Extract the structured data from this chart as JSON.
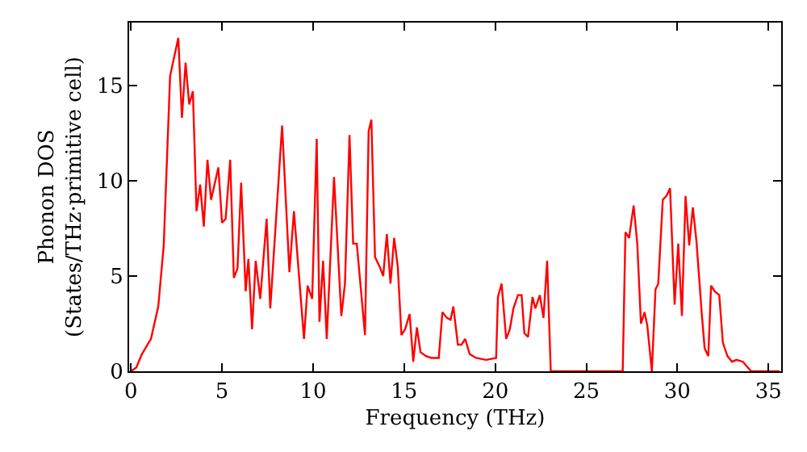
{
  "chart_data": {
    "type": "line",
    "xlabel": "Frequency (THz)",
    "ylabel": "Phonon DOS\n(States/THz·primitive cell)",
    "x": [
      0,
      0.3,
      0.6,
      1.1,
      1.5,
      1.8,
      2.15,
      2.6,
      2.8,
      3.0,
      3.2,
      3.4,
      3.6,
      3.8,
      4.0,
      4.2,
      4.4,
      4.8,
      5.0,
      5.2,
      5.45,
      5.65,
      5.85,
      6.05,
      6.3,
      6.45,
      6.65,
      6.85,
      7.1,
      7.45,
      7.65,
      8.3,
      8.7,
      8.95,
      9.5,
      9.7,
      9.95,
      10.2,
      10.35,
      10.55,
      10.75,
      11.15,
      11.55,
      11.75,
      12.0,
      12.2,
      12.4,
      12.85,
      13.05,
      13.2,
      13.4,
      13.65,
      13.85,
      14.05,
      14.25,
      14.45,
      14.65,
      14.85,
      15.05,
      15.3,
      15.5,
      15.7,
      15.9,
      16.2,
      16.5,
      16.9,
      17.1,
      17.35,
      17.55,
      17.7,
      17.95,
      18.15,
      18.35,
      18.6,
      18.95,
      19.5,
      20.05,
      20.15,
      20.35,
      20.6,
      20.8,
      21.0,
      21.25,
      21.45,
      21.6,
      21.8,
      22.05,
      22.2,
      22.45,
      22.65,
      22.85,
      23.05,
      27.0,
      27.15,
      27.35,
      27.6,
      27.8,
      28.0,
      28.2,
      28.35,
      28.6,
      28.8,
      28.95,
      29.2,
      29.4,
      29.6,
      29.85,
      30.05,
      30.25,
      30.45,
      30.65,
      30.85,
      31.05,
      31.35,
      31.5,
      31.7,
      31.85,
      32.05,
      32.3,
      32.5,
      32.75,
      33.0,
      33.25,
      33.6,
      34.05,
      35.6
    ],
    "series": [
      {
        "color": "#ff0000",
        "values": [
          0,
          0.2,
          0.9,
          1.7,
          3.4,
          6.6,
          15.5,
          17.5,
          13.3,
          16.2,
          14.0,
          14.7,
          8.4,
          9.8,
          7.6,
          11.1,
          9.0,
          10.7,
          7.8,
          8.0,
          11.1,
          4.9,
          5.4,
          9.9,
          4.2,
          5.9,
          2.2,
          5.8,
          3.8,
          8.0,
          3.3,
          12.9,
          5.2,
          8.4,
          1.7,
          4.5,
          3.8,
          12.2,
          2.6,
          5.8,
          1.7,
          10.2,
          2.9,
          4.6,
          12.4,
          6.7,
          6.7,
          1.9,
          12.6,
          13.2,
          6.0,
          5.5,
          5.0,
          7.2,
          4.6,
          7.0,
          5.5,
          1.9,
          2.2,
          3.0,
          0.5,
          2.3,
          1.0,
          0.8,
          0.7,
          0.7,
          3.1,
          2.8,
          2.7,
          3.4,
          1.4,
          1.4,
          1.7,
          0.9,
          0.7,
          0.6,
          0.7,
          3.9,
          4.6,
          1.7,
          2.2,
          3.3,
          4.0,
          4.0,
          2.0,
          1.8,
          3.9,
          3.3,
          4.0,
          2.8,
          5.8,
          0,
          0,
          7.3,
          7.0,
          8.7,
          6.7,
          2.5,
          3.1,
          2.4,
          0,
          4.3,
          4.6,
          9.0,
          9.2,
          9.6,
          3.5,
          6.7,
          2.9,
          9.2,
          6.6,
          8.6,
          6.8,
          2.9,
          1.2,
          0.8,
          4.5,
          4.2,
          4.0,
          1.5,
          0.8,
          0.5,
          0.6,
          0.5,
          0,
          0
        ]
      }
    ],
    "xlim": [
      -0.1,
      35.7
    ],
    "ylim": [
      0,
      18.3
    ],
    "xticks": [
      0,
      5,
      10,
      15,
      20,
      25,
      30,
      35
    ],
    "yticks": [
      0,
      5,
      10,
      15
    ],
    "marker": "none",
    "line_style": "solid"
  }
}
